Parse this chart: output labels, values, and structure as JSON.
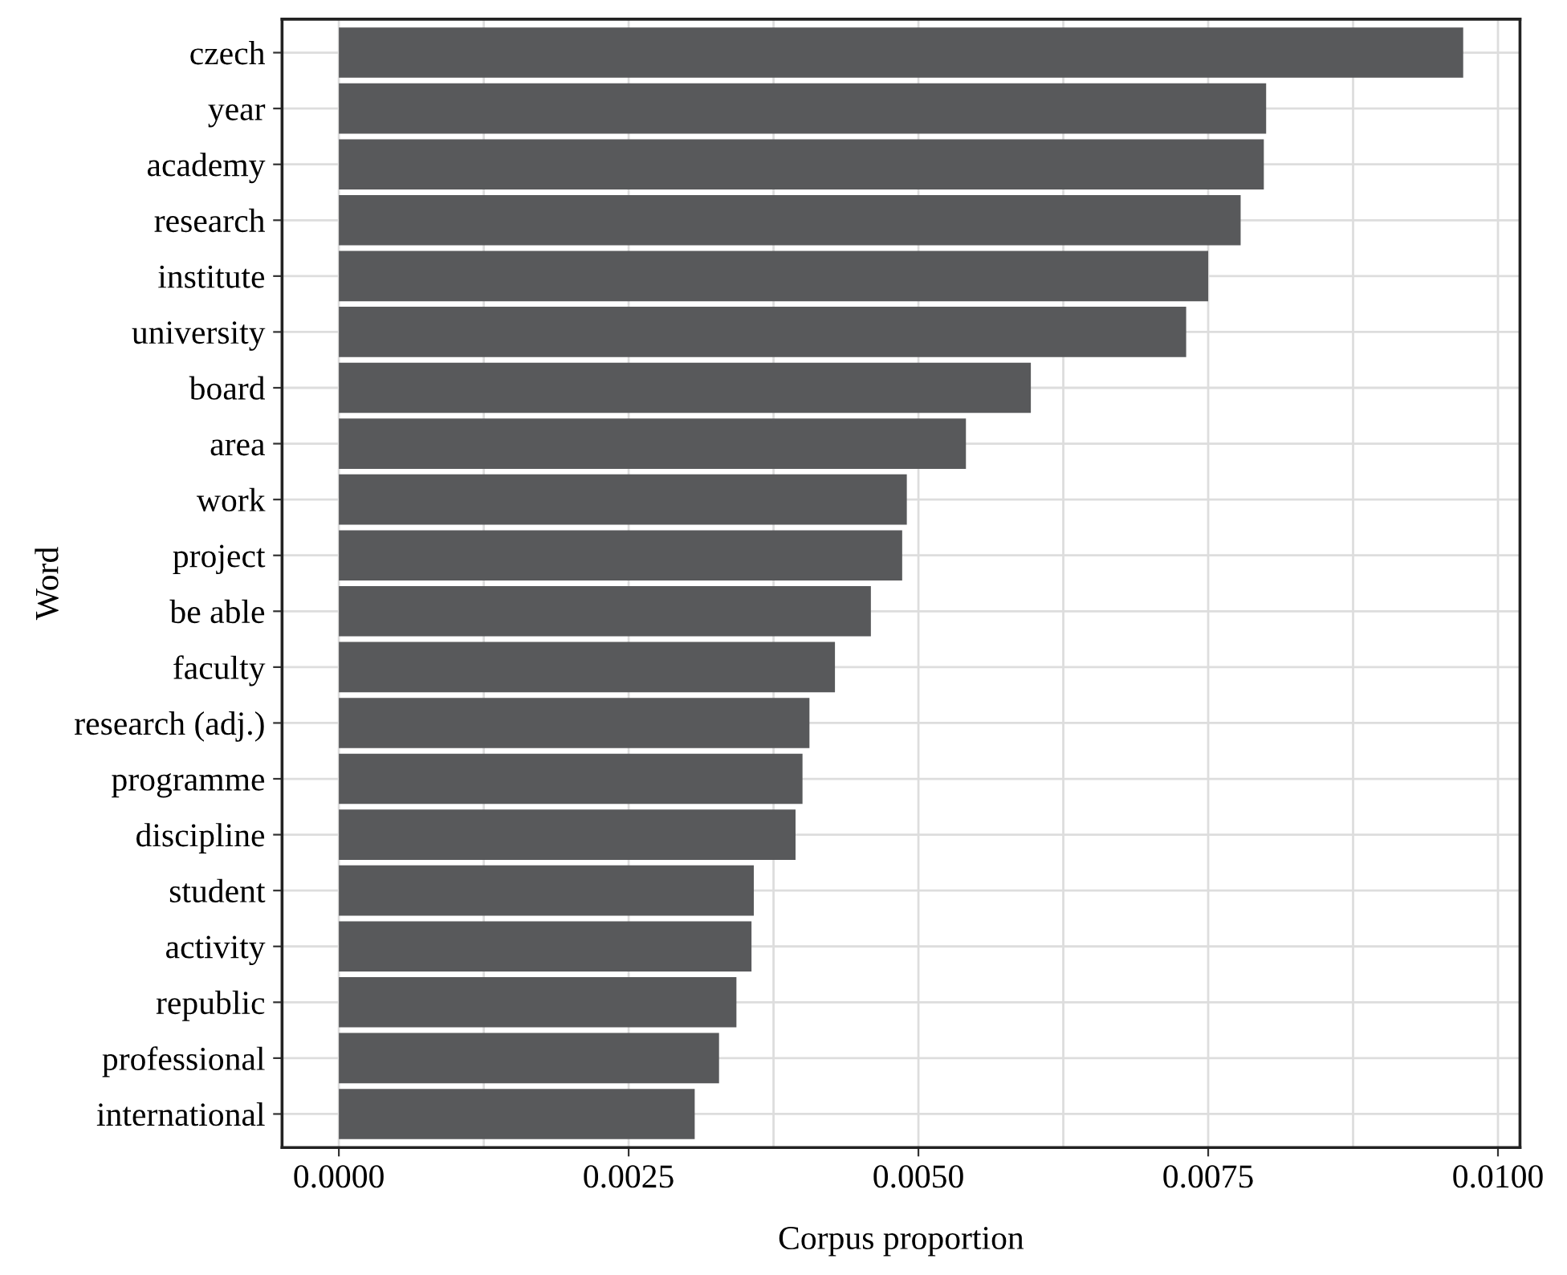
{
  "chart_data": {
    "type": "bar",
    "orientation": "horizontal",
    "xlabel": "Corpus proportion",
    "ylabel": "Word",
    "categories": [
      "czech",
      "year",
      "academy",
      "research",
      "institute",
      "university",
      "board",
      "area",
      "work",
      "project",
      "be able",
      "faculty",
      "research (adj.)",
      "programme",
      "discipline",
      "student",
      "activity",
      "republic",
      "professional",
      "international"
    ],
    "values": [
      0.0097,
      0.008,
      0.00798,
      0.00778,
      0.0075,
      0.00731,
      0.00597,
      0.00541,
      0.0049,
      0.00486,
      0.00459,
      0.00428,
      0.00406,
      0.004,
      0.00394,
      0.00358,
      0.00356,
      0.00343,
      0.00328,
      0.00307
    ],
    "color": "#58595b",
    "xlim": [
      -0.00049,
      0.01019
    ],
    "xticks": [
      {
        "value": 0,
        "label": "0.0000"
      },
      {
        "value": 0.0025,
        "label": "0.0025"
      },
      {
        "value": 0.005,
        "label": "0.0050"
      },
      {
        "value": 0.0075,
        "label": "0.0075"
      },
      {
        "value": 0.01,
        "label": "0.0100"
      }
    ],
    "grid": true
  }
}
